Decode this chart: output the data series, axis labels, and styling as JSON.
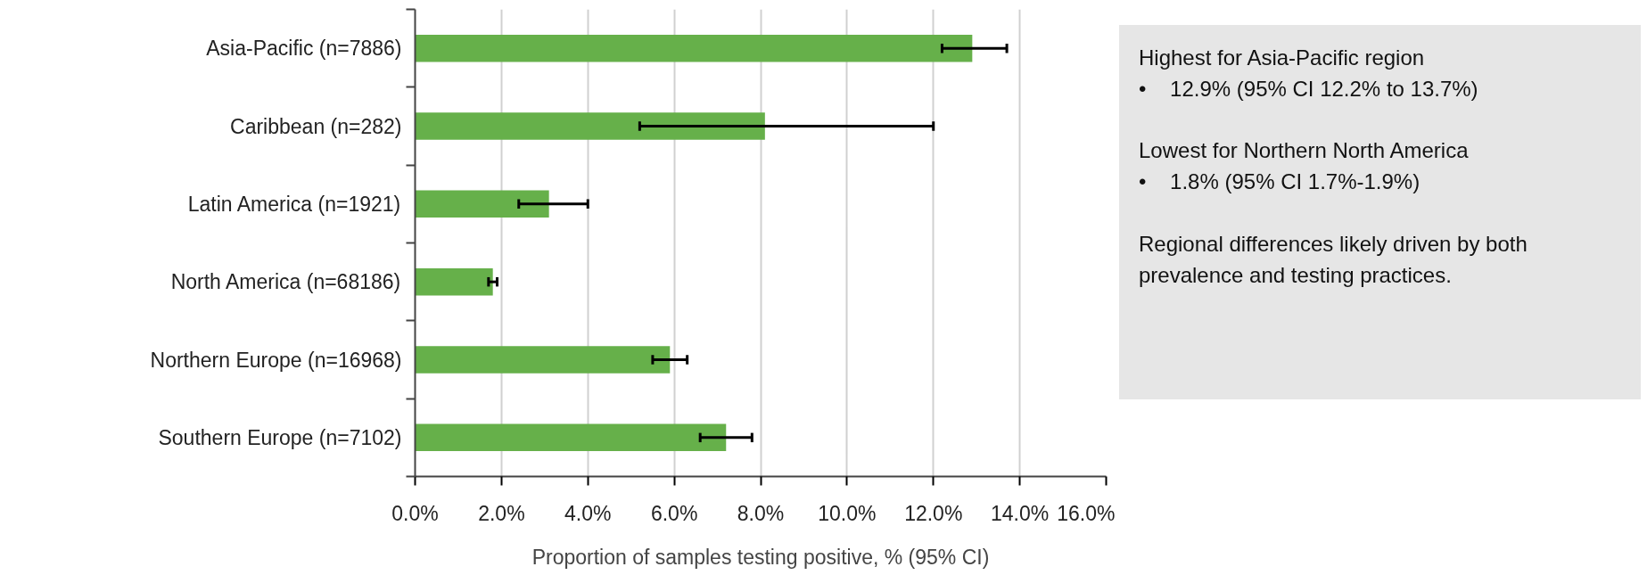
{
  "chart_data": {
    "type": "bar",
    "orientation": "horizontal",
    "xlabel": "Proportion of samples testing positive, % (95% CI)",
    "categories": [
      "Asia-Pacific (n=7886)",
      "Caribbean (n=282)",
      "Latin America (n=1921)",
      "North America (n=68186)",
      "Northern Europe (n=16968)",
      "Southern Europe (n=7102)"
    ],
    "values": [
      12.9,
      8.1,
      3.1,
      1.8,
      5.9,
      7.2
    ],
    "errors": [
      [
        12.2,
        13.7
      ],
      [
        5.2,
        12.0
      ],
      [
        2.4,
        4.0
      ],
      [
        1.7,
        1.9
      ],
      [
        5.5,
        6.3
      ],
      [
        6.6,
        7.8
      ]
    ],
    "color": "#66b04a",
    "xlim": [
      0,
      16
    ],
    "xticks": [
      {
        "value": 0,
        "label": "0.0%"
      },
      {
        "value": 2,
        "label": "2.0%"
      },
      {
        "value": 4,
        "label": "4.0%"
      },
      {
        "value": 6,
        "label": "6.0%"
      },
      {
        "value": 8,
        "label": "8.0%"
      },
      {
        "value": 10,
        "label": "10.0%"
      },
      {
        "value": 12,
        "label": "12.0%"
      },
      {
        "value": 14,
        "label": "14.0%"
      },
      {
        "value": 16,
        "label": "16.0%"
      }
    ],
    "grid": "x",
    "annotations": [
      "Highest for Asia-Pacific region",
      "•    12.9% (95% CI 12.2% to 13.7%)",
      "Lowest for Northern North America",
      "•    1.8% (95% CI 1.7%-1.9%)",
      "Regional differences likely driven by both prevalence and testing practices."
    ]
  }
}
